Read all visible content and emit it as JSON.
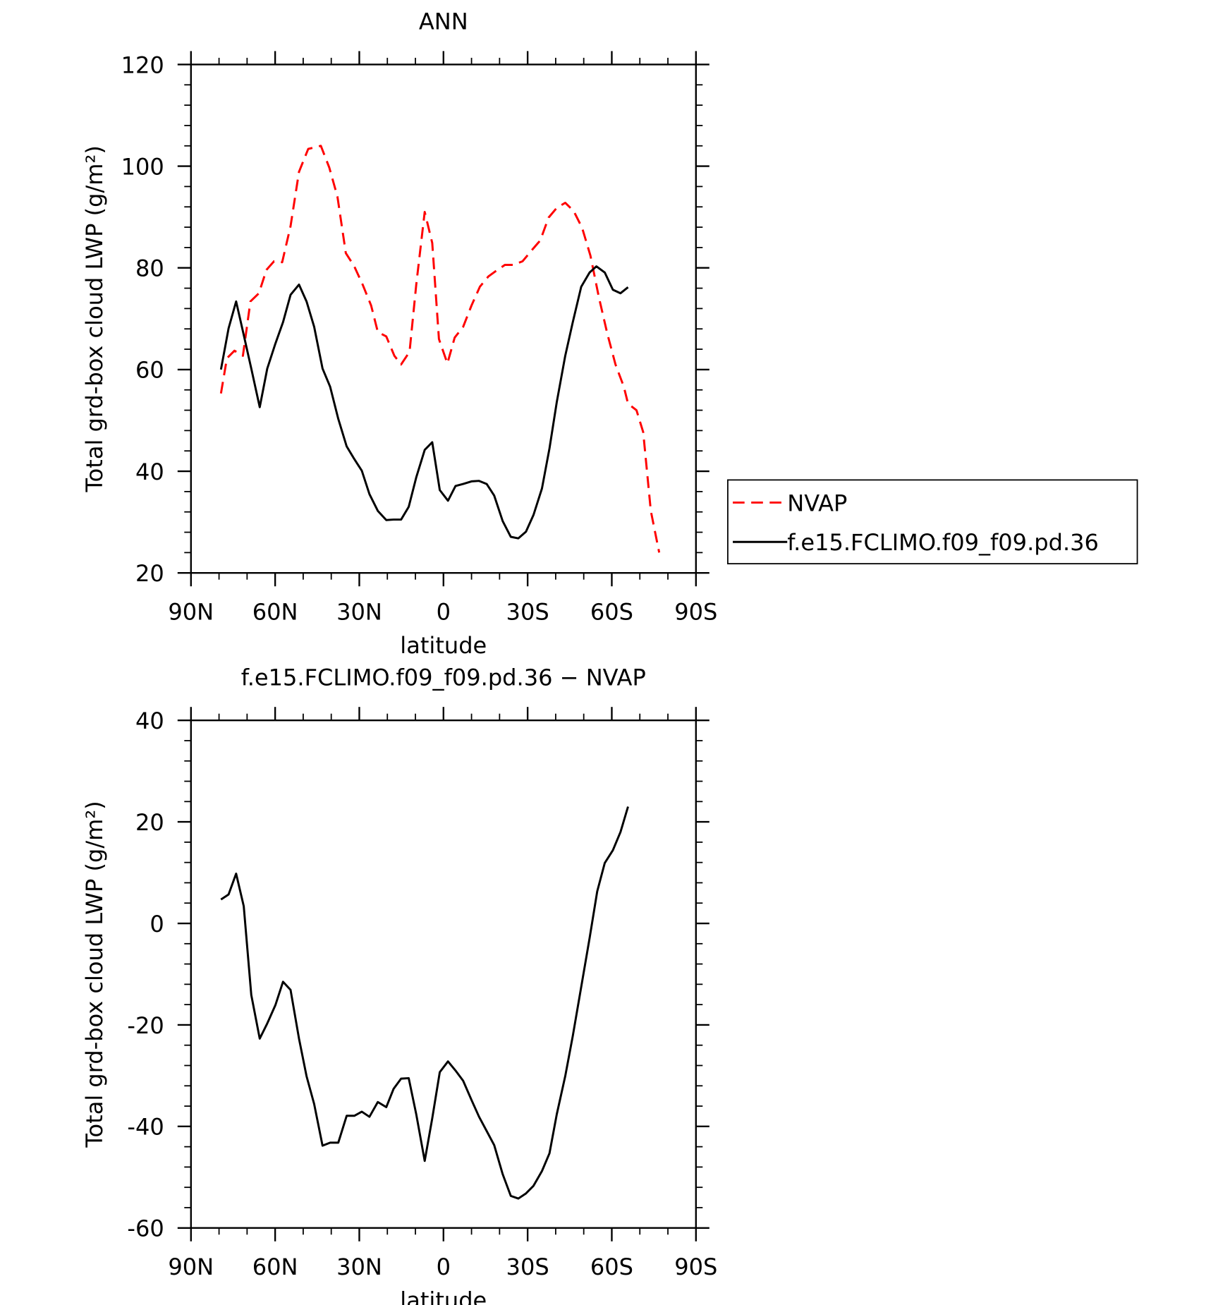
{
  "chart_data": [
    {
      "type": "line",
      "title": "ANN",
      "xlabel": "latitude",
      "ylabel": "Total grd-box cloud LWP (g/m²)",
      "xlim": [
        90,
        -90
      ],
      "ylim": [
        20,
        120
      ],
      "xticks": [
        {
          "value": 90,
          "label": "90N"
        },
        {
          "value": 60,
          "label": "60N"
        },
        {
          "value": 30,
          "label": "30N"
        },
        0,
        {
          "value": -30,
          "label": "30S"
        },
        {
          "value": -60,
          "label": "60S"
        },
        {
          "value": -90,
          "label": "90S"
        }
      ],
      "yticks": [
        20,
        40,
        60,
        80,
        100,
        120
      ],
      "legend": "right",
      "series": [
        {
          "name": "NVAP",
          "color": "#ff0000",
          "dashed": true,
          "x": [
            79.3,
            77.2,
            74.5,
            71.5,
            68.8,
            65.8,
            63.1,
            60.4,
            57.5,
            54.5,
            51.5,
            48.2,
            43.7,
            40.7,
            37.8,
            34.8,
            31.8,
            28.8,
            25.8,
            23.4,
            20.4,
            17.5,
            15.1,
            12.1,
            9.7,
            6.7,
            4.0,
            1.6,
            -1.4,
            -4.0,
            -7.0,
            -10.0,
            -13.0,
            -16.0,
            -19.0,
            -21.9,
            -24.9,
            -28.2,
            -31.2,
            -34.5,
            -37.5,
            -40.4,
            -43.4,
            -46.4,
            -49.4,
            -52.4,
            -55.4,
            -58.4,
            -61.3,
            -64.3,
            -65.8,
            -68.8,
            -71.2,
            -73.9,
            -76.9
          ],
          "values": [
            55.3,
            62.2,
            63.7,
            62.7,
            73.4,
            75,
            79.6,
            81.3,
            81.1,
            88.2,
            98.9,
            103.4,
            104,
            99.7,
            94,
            82.9,
            80.3,
            76.7,
            72.6,
            67.4,
            66.5,
            62.7,
            61,
            63.5,
            76.7,
            91,
            84.9,
            66,
            61.2,
            66.3,
            68.4,
            72.6,
            76.3,
            78.3,
            79.5,
            80.6,
            80.6,
            81.3,
            83.3,
            85.4,
            89.9,
            91.8,
            92.8,
            91.2,
            87.9,
            82.4,
            74.2,
            67.1,
            61,
            56.6,
            53.3,
            52,
            47.7,
            32.2,
            24
          ]
        },
        {
          "name": "f.e15.FCLIMO.f09_f09.pd.36",
          "color": "#000000",
          "dashed": false,
          "x": [
            79.3,
            76.6,
            73.9,
            71.2,
            68.5,
            65.5,
            62.8,
            59.9,
            57.2,
            54.5,
            51.5,
            48.8,
            46.1,
            43.1,
            40.4,
            37.5,
            34.5,
            31.8,
            29.1,
            26.4,
            23.4,
            20.4,
            17.8,
            15.1,
            12.4,
            9.7,
            6.7,
            4.0,
            1.3,
            -1.6,
            -4.3,
            -7.0,
            -10.0,
            -12.7,
            -15.4,
            -18.1,
            -21.1,
            -24.0,
            -26.7,
            -29.4,
            -32.1,
            -35.1,
            -37.8,
            -40.4,
            -43.4,
            -46.1,
            -49.1,
            -52.1,
            -54.5,
            -57.5,
            -60.4,
            -63.1,
            -65.8
          ],
          "values": [
            60,
            68.1,
            73.4,
            66.8,
            60.2,
            52.6,
            60.2,
            65.1,
            69.3,
            74.7,
            76.7,
            73.4,
            68.4,
            60.2,
            56.6,
            50.3,
            44.9,
            42.4,
            40.1,
            35.5,
            32.2,
            30.4,
            30.5,
            30.5,
            33,
            38.8,
            44.2,
            45.7,
            36.3,
            34.2,
            37.1,
            37.5,
            38,
            38.1,
            37.5,
            35.2,
            30.2,
            27.1,
            26.8,
            28.1,
            31.4,
            36.6,
            44.5,
            53.6,
            62.7,
            69.3,
            76.3,
            79.1,
            80.3,
            79.1,
            75.7,
            75,
            76.2
          ]
        }
      ]
    },
    {
      "type": "line",
      "title": "f.e15.FCLIMO.f09_f09.pd.36 − NVAP",
      "xlabel": "latitude",
      "ylabel": "Total grd-box cloud LWP (g/m²)",
      "xlim": [
        90,
        -90
      ],
      "ylim": [
        -60,
        40
      ],
      "xticks": [
        {
          "value": 90,
          "label": "90N"
        },
        {
          "value": 60,
          "label": "60N"
        },
        {
          "value": 30,
          "label": "30N"
        },
        0,
        {
          "value": -30,
          "label": "30S"
        },
        {
          "value": -60,
          "label": "60S"
        },
        {
          "value": -90,
          "label": "90S"
        }
      ],
      "yticks": [
        -60,
        -40,
        -20,
        0,
        20,
        40
      ],
      "series": [
        {
          "color": "#000000",
          "dashed": false,
          "x": [
            79.3,
            76.6,
            73.9,
            71.2,
            68.5,
            65.5,
            62.8,
            59.9,
            57.2,
            54.5,
            51.5,
            48.8,
            46.1,
            43.1,
            40.4,
            37.5,
            34.5,
            31.8,
            29.1,
            26.4,
            23.4,
            20.4,
            17.8,
            15.1,
            12.4,
            9.7,
            6.7,
            4.0,
            1.3,
            -1.6,
            -4.3,
            -7.0,
            -10.0,
            -12.7,
            -15.4,
            -18.1,
            -21.1,
            -24.0,
            -26.7,
            -29.4,
            -32.1,
            -35.1,
            -37.8,
            -40.4,
            -43.4,
            -46.1,
            -49.1,
            -52.1,
            -54.8,
            -57.5,
            -60.4,
            -63.1,
            -65.8
          ],
          "values": [
            4.7,
            5.7,
            9.8,
            3.4,
            -14.1,
            -22.7,
            -19.7,
            -16.1,
            -11.5,
            -13.1,
            -22.7,
            -30.1,
            -35.6,
            -43.8,
            -43.2,
            -43.2,
            -37.9,
            -37.9,
            -37.1,
            -38.1,
            -35.2,
            -36.2,
            -32.6,
            -30.6,
            -30.5,
            -37.6,
            -46.8,
            -38.4,
            -29.3,
            -27.2,
            -29,
            -31,
            -34.8,
            -38.1,
            -40.9,
            -43.7,
            -49.4,
            -53.7,
            -54.2,
            -53.2,
            -51.7,
            -48.8,
            -45.3,
            -37.6,
            -30.1,
            -22.2,
            -12.5,
            -2.9,
            6.3,
            11.9,
            14.4,
            18,
            23
          ]
        }
      ]
    }
  ]
}
